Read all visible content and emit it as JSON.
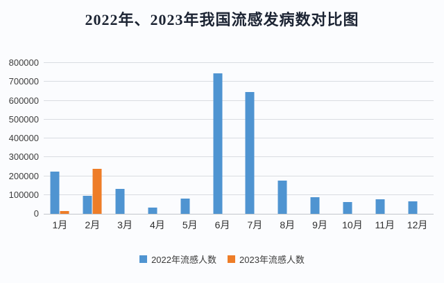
{
  "page": {
    "background": "#fbfcfe"
  },
  "header": {
    "title": "2022年、2023年我国流感发病数对比图"
  },
  "chart_data": {
    "type": "bar",
    "title": "2022年、2023年我国流感发病数对比图",
    "categories": [
      "1月",
      "2月",
      "3月",
      "4月",
      "5月",
      "6月",
      "7月",
      "8月",
      "9月",
      "10月",
      "11月",
      "12月"
    ],
    "series": [
      {
        "name": "2022年流感人数",
        "color": "#4f94d1",
        "values": [
          223000,
          95000,
          133000,
          34000,
          79000,
          745000,
          645000,
          176000,
          88000,
          63000,
          78000,
          66000
        ]
      },
      {
        "name": "2023年流感人数",
        "color": "#ee7d28",
        "values": [
          15000,
          238000,
          null,
          null,
          null,
          null,
          null,
          null,
          null,
          null,
          null,
          null
        ]
      }
    ],
    "ylim": [
      0,
      800000
    ],
    "ytick_step": 100000,
    "ytick_labels": [
      "0",
      "100000",
      "200000",
      "300000",
      "400000",
      "500000",
      "600000",
      "700000",
      "800000"
    ],
    "grid": true,
    "legend_position": "bottom",
    "xlabel": "",
    "ylabel": "",
    "colors": {
      "gridline": "#d9dce1",
      "axis_line": "#c2c6cb",
      "tick_text": "#3d3d3d"
    }
  }
}
